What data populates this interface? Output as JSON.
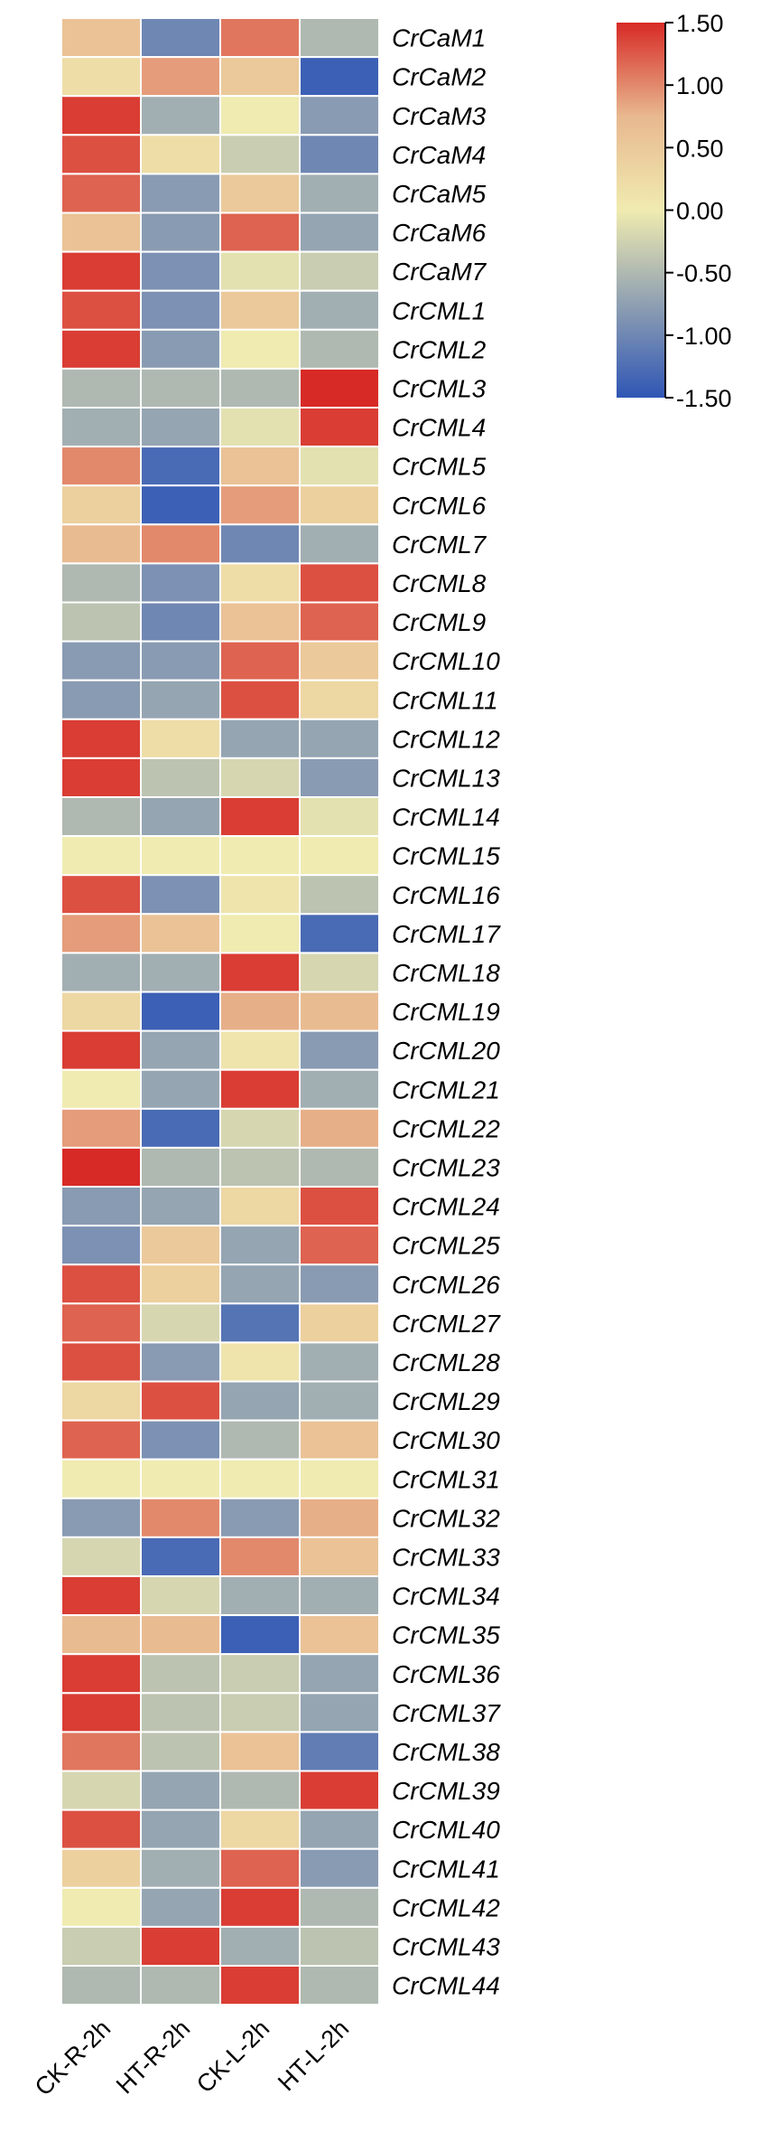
{
  "chart_data": {
    "type": "heatmap",
    "columns": [
      "CK-R-2h",
      "HT-R-2h",
      "CK-L-2h",
      "HT-L-2h"
    ],
    "rows": [
      "CrCaM1",
      "CrCaM2",
      "CrCaM3",
      "CrCaM4",
      "CrCaM5",
      "CrCaM6",
      "CrCaM7",
      "CrCML1",
      "CrCML2",
      "CrCML3",
      "CrCML4",
      "CrCML5",
      "CrCML6",
      "CrCML7",
      "CrCML8",
      "CrCML9",
      "CrCML10",
      "CrCML11",
      "CrCML12",
      "CrCML13",
      "CrCML14",
      "CrCML15",
      "CrCML16",
      "CrCML17",
      "CrCML18",
      "CrCML19",
      "CrCML20",
      "CrCML21",
      "CrCML22",
      "CrCML23",
      "CrCML24",
      "CrCML25",
      "CrCML26",
      "CrCML27",
      "CrCML28",
      "CrCML29",
      "CrCML30",
      "CrCML31",
      "CrCML32",
      "CrCML33",
      "CrCML34",
      "CrCML35",
      "CrCML36",
      "CrCML37",
      "CrCML38",
      "CrCML39",
      "CrCML40",
      "CrCML41",
      "CrCML42",
      "CrCML43",
      "CrCML44"
    ],
    "values": [
      [
        0.6,
        -1.0,
        1.1,
        -0.5
      ],
      [
        0.2,
        0.9,
        0.5,
        -1.4
      ],
      [
        1.4,
        -0.6,
        0.0,
        -0.8
      ],
      [
        1.3,
        0.2,
        -0.3,
        -1.0
      ],
      [
        1.2,
        -0.8,
        0.5,
        -0.6
      ],
      [
        0.6,
        -0.8,
        1.2,
        -0.7
      ],
      [
        1.4,
        -0.9,
        -0.1,
        -0.3
      ],
      [
        1.3,
        -0.9,
        0.5,
        -0.6
      ],
      [
        1.4,
        -0.8,
        0.0,
        -0.5
      ],
      [
        -0.5,
        -0.5,
        -0.5,
        1.5
      ],
      [
        -0.6,
        -0.7,
        -0.1,
        1.4
      ],
      [
        1.0,
        -1.3,
        0.6,
        -0.1
      ],
      [
        0.4,
        -1.4,
        0.9,
        0.4
      ],
      [
        0.7,
        1.0,
        -1.0,
        -0.6
      ],
      [
        -0.5,
        -0.9,
        0.2,
        1.3
      ],
      [
        -0.4,
        -1.0,
        0.6,
        1.2
      ],
      [
        -0.8,
        -0.8,
        1.2,
        0.5
      ],
      [
        -0.8,
        -0.7,
        1.3,
        0.3
      ],
      [
        1.4,
        0.2,
        -0.7,
        -0.7
      ],
      [
        1.4,
        -0.4,
        -0.2,
        -0.8
      ],
      [
        -0.5,
        -0.7,
        1.4,
        -0.1
      ],
      [
        0.0,
        0.0,
        0.0,
        0.0
      ],
      [
        1.3,
        -0.9,
        0.1,
        -0.4
      ],
      [
        0.9,
        0.6,
        0.0,
        -1.3
      ],
      [
        -0.6,
        -0.6,
        1.4,
        -0.2
      ],
      [
        0.3,
        -1.4,
        0.8,
        0.7
      ],
      [
        1.4,
        -0.7,
        0.1,
        -0.8
      ],
      [
        0.0,
        -0.7,
        1.4,
        -0.6
      ],
      [
        0.9,
        -1.3,
        -0.2,
        0.8
      ],
      [
        1.5,
        -0.5,
        -0.4,
        -0.5
      ],
      [
        -0.8,
        -0.7,
        0.3,
        1.3
      ],
      [
        -0.9,
        0.5,
        -0.7,
        1.2
      ],
      [
        1.3,
        0.4,
        -0.7,
        -0.8
      ],
      [
        1.2,
        -0.2,
        -1.2,
        0.4
      ],
      [
        1.3,
        -0.8,
        0.1,
        -0.6
      ],
      [
        0.3,
        1.3,
        -0.7,
        -0.6
      ],
      [
        1.2,
        -0.9,
        -0.5,
        0.6
      ],
      [
        0.0,
        0.0,
        0.0,
        0.0
      ],
      [
        -0.8,
        1.0,
        -0.8,
        0.8
      ],
      [
        -0.2,
        -1.3,
        1.0,
        0.6
      ],
      [
        1.4,
        -0.2,
        -0.6,
        -0.6
      ],
      [
        0.7,
        0.7,
        -1.4,
        0.6
      ],
      [
        1.4,
        -0.4,
        -0.3,
        -0.7
      ],
      [
        1.4,
        -0.4,
        -0.3,
        -0.7
      ],
      [
        1.1,
        -0.4,
        0.6,
        -1.1
      ],
      [
        -0.2,
        -0.7,
        -0.5,
        1.4
      ],
      [
        1.3,
        -0.7,
        0.3,
        -0.7
      ],
      [
        0.4,
        -0.6,
        1.2,
        -0.8
      ],
      [
        0.0,
        -0.7,
        1.4,
        -0.5
      ],
      [
        -0.3,
        1.4,
        -0.6,
        -0.4
      ],
      [
        -0.5,
        -0.5,
        1.4,
        -0.5
      ]
    ],
    "scale": {
      "min": -1.5,
      "max": 1.5,
      "ticks": [
        "1.50",
        "1.00",
        "0.50",
        "0.00",
        "-0.50",
        "-1.00",
        "-1.50"
      ]
    },
    "colors": {
      "low": "#2f56b5",
      "mid_low": "#8fa0b2",
      "mid": "#f0ebb0",
      "mid_high": "#e8b88f",
      "high": "#d72a26"
    },
    "title": "",
    "legend_position": "top-right"
  }
}
